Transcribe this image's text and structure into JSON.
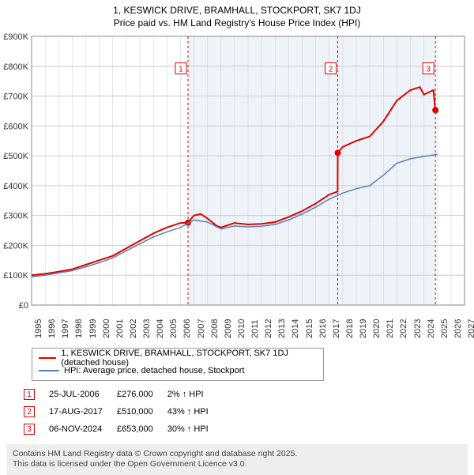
{
  "title_line1": "1, KESWICK DRIVE, BRAMHALL, STOCKPORT, SK7 1DJ",
  "title_line2": "Price paid vs. HM Land Registry's House Price Index (HPI)",
  "chart": {
    "type": "line",
    "background_color": "#ffffff",
    "plot_border_color": "#888888",
    "grid_color": "#cccccc",
    "highlight_band_color": "#eef3fa",
    "highlight_band_x": [
      2006.56,
      2024.85
    ],
    "xlim": [
      1995,
      2027
    ],
    "ylim": [
      0,
      900000
    ],
    "ytick_step": 100000,
    "ytick_labels": [
      "£0",
      "£100K",
      "£200K",
      "£300K",
      "£400K",
      "£500K",
      "£600K",
      "£700K",
      "£800K",
      "£900K"
    ],
    "xtick_step": 1,
    "xtick_labels": [
      "1995",
      "1996",
      "1997",
      "1998",
      "1999",
      "2000",
      "2001",
      "2002",
      "2003",
      "2004",
      "2005",
      "2006",
      "2007",
      "2008",
      "2009",
      "2010",
      "2011",
      "2012",
      "2013",
      "2014",
      "2015",
      "2016",
      "2017",
      "2018",
      "2019",
      "2020",
      "2021",
      "2022",
      "2023",
      "2024",
      "2025",
      "2026",
      "2027"
    ],
    "axis_font_size": 11,
    "series": [
      {
        "name": "price_paid",
        "color": "#e00000",
        "line_width": 2,
        "points": [
          [
            1995,
            100000
          ],
          [
            1996,
            105000
          ],
          [
            1997,
            112000
          ],
          [
            1998,
            120000
          ],
          [
            1999,
            135000
          ],
          [
            2000,
            150000
          ],
          [
            2001,
            165000
          ],
          [
            2002,
            190000
          ],
          [
            2003,
            215000
          ],
          [
            2004,
            240000
          ],
          [
            2005,
            260000
          ],
          [
            2006,
            275000
          ],
          [
            2006.56,
            276000
          ],
          [
            2007,
            300000
          ],
          [
            2007.5,
            305000
          ],
          [
            2008,
            290000
          ],
          [
            2008.7,
            265000
          ],
          [
            2009,
            260000
          ],
          [
            2010,
            275000
          ],
          [
            2011,
            270000
          ],
          [
            2012,
            272000
          ],
          [
            2013,
            278000
          ],
          [
            2014,
            295000
          ],
          [
            2015,
            315000
          ],
          [
            2016,
            340000
          ],
          [
            2017,
            370000
          ],
          [
            2017.62,
            380000
          ],
          [
            2017.63,
            510000
          ],
          [
            2018,
            530000
          ],
          [
            2019,
            550000
          ],
          [
            2020,
            565000
          ],
          [
            2021,
            615000
          ],
          [
            2022,
            685000
          ],
          [
            2023,
            720000
          ],
          [
            2023.7,
            730000
          ],
          [
            2024,
            705000
          ],
          [
            2024.7,
            720000
          ],
          [
            2024.84,
            653000
          ],
          [
            2024.85,
            653000
          ]
        ]
      },
      {
        "name": "hpi",
        "color": "#5b7fb0",
        "line_width": 1.5,
        "points": [
          [
            1995,
            95000
          ],
          [
            1996,
            100000
          ],
          [
            1997,
            108000
          ],
          [
            1998,
            115000
          ],
          [
            1999,
            128000
          ],
          [
            2000,
            142000
          ],
          [
            2001,
            158000
          ],
          [
            2002,
            182000
          ],
          [
            2003,
            205000
          ],
          [
            2004,
            228000
          ],
          [
            2005,
            245000
          ],
          [
            2006,
            260000
          ],
          [
            2007,
            285000
          ],
          [
            2008,
            278000
          ],
          [
            2009,
            255000
          ],
          [
            2010,
            265000
          ],
          [
            2011,
            262000
          ],
          [
            2012,
            264000
          ],
          [
            2013,
            270000
          ],
          [
            2014,
            285000
          ],
          [
            2015,
            305000
          ],
          [
            2016,
            328000
          ],
          [
            2017,
            355000
          ],
          [
            2018,
            375000
          ],
          [
            2019,
            390000
          ],
          [
            2020,
            400000
          ],
          [
            2021,
            435000
          ],
          [
            2022,
            475000
          ],
          [
            2023,
            490000
          ],
          [
            2024,
            498000
          ],
          [
            2025,
            505000
          ]
        ]
      }
    ],
    "markers": [
      {
        "n": "1",
        "x": 2006.56,
        "y": 276000,
        "label_y": 790000
      },
      {
        "n": "2",
        "x": 2017.63,
        "y": 510000,
        "label_y": 790000
      },
      {
        "n": "3",
        "x": 2024.85,
        "y": 653000,
        "label_y": 790000
      }
    ],
    "marker_color": "#e00000",
    "marker_dash": "3,3",
    "marker_box_border": "#e00000"
  },
  "legend": {
    "items": [
      {
        "color": "#e00000",
        "label": "1, KESWICK DRIVE, BRAMHALL, STOCKPORT, SK7 1DJ (detached house)"
      },
      {
        "color": "#5b7fb0",
        "label": "HPI: Average price, detached house, Stockport"
      }
    ]
  },
  "transactions": [
    {
      "n": "1",
      "date": "25-JUL-2006",
      "price": "£276,000",
      "delta": "2% ↑ HPI"
    },
    {
      "n": "2",
      "date": "17-AUG-2017",
      "price": "£510,000",
      "delta": "43% ↑ HPI"
    },
    {
      "n": "3",
      "date": "06-NOV-2024",
      "price": "£653,000",
      "delta": "30% ↑ HPI"
    }
  ],
  "footer_line1": "Contains HM Land Registry data © Crown copyright and database right 2025.",
  "footer_line2": "This data is licensed under the Open Government Licence v3.0."
}
